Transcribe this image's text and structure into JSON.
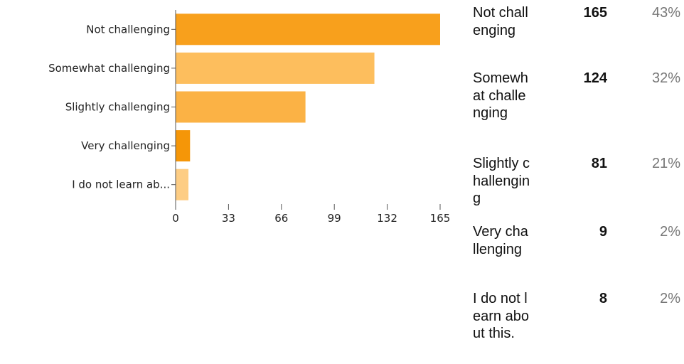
{
  "chart_data": {
    "type": "bar",
    "orientation": "horizontal",
    "categories": [
      "Not challenging",
      "Somewhat challenging",
      "Slightly challenging",
      "Very challenging",
      "I do not learn ab..."
    ],
    "values": [
      165,
      124,
      81,
      9,
      8
    ],
    "xlim": [
      0,
      165
    ],
    "xticks": [
      "0",
      "33",
      "66",
      "99",
      "132",
      "165"
    ],
    "colors": [
      "#f8a01c",
      "#fdbe5d",
      "#fbb245",
      "#f59608",
      "#fdcd84"
    ],
    "grid": false,
    "legend": "none"
  },
  "table": {
    "rows": [
      {
        "label": "Not challenging",
        "count": "165",
        "percent": "43%"
      },
      {
        "label": "Somewhat challenging",
        "count": "124",
        "percent": "32%"
      },
      {
        "label": "Slightly challenging",
        "count": "81",
        "percent": "21%"
      },
      {
        "label": "Very challenging",
        "count": "9",
        "percent": "2%"
      },
      {
        "label": "I do not learn about this.",
        "count": "8",
        "percent": "2%"
      }
    ]
  }
}
